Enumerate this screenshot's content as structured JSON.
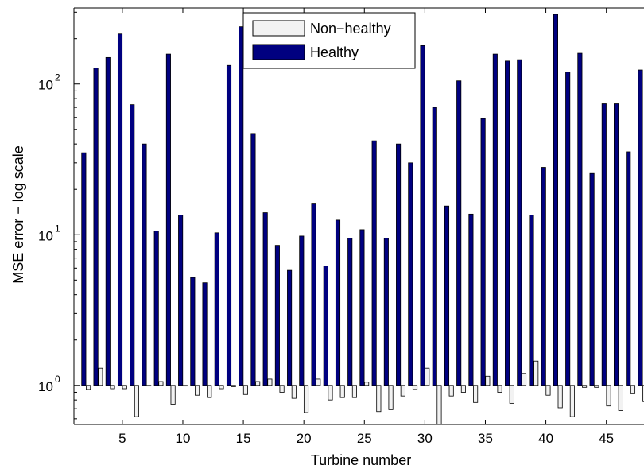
{
  "chart_data": {
    "type": "bar",
    "xlabel": "Turbine number",
    "ylabel": "MSE error − log scale",
    "yscale": "log",
    "ylim": [
      0.55,
      320
    ],
    "xlim": [
      1,
      48.1
    ],
    "grid": false,
    "legend_position": "top-center",
    "x_ticks": [
      5,
      10,
      15,
      20,
      25,
      30,
      35,
      40,
      45
    ],
    "y_ticks": [
      {
        "value": 1,
        "base": "10",
        "exp": "0"
      },
      {
        "value": 10,
        "base": "10",
        "exp": "1"
      },
      {
        "value": 100,
        "base": "10",
        "exp": "2"
      }
    ],
    "categories": [
      2,
      3,
      4,
      5,
      6,
      7,
      8,
      9,
      10,
      11,
      12,
      13,
      14,
      15,
      16,
      17,
      18,
      19,
      20,
      21,
      22,
      23,
      24,
      25,
      26,
      27,
      28,
      29,
      30,
      31,
      32,
      33,
      34,
      35,
      36,
      37,
      38,
      39,
      40,
      41,
      42,
      43,
      44,
      45,
      46,
      47,
      48
    ],
    "series": [
      {
        "name": "Non−healthy",
        "color": "#f2f2f2",
        "values": [
          0.94,
          1.3,
          0.95,
          0.95,
          0.62,
          0.99,
          1.06,
          0.75,
          0.99,
          0.86,
          0.83,
          0.95,
          0.98,
          0.87,
          1.06,
          1.1,
          0.9,
          0.82,
          0.66,
          1.1,
          0.8,
          0.83,
          0.83,
          1.05,
          0.67,
          0.69,
          0.85,
          0.94,
          1.3,
          0.5,
          0.85,
          0.9,
          0.77,
          1.15,
          0.9,
          0.76,
          1.2,
          1.45,
          0.86,
          0.71,
          0.62,
          0.97,
          0.97,
          0.73,
          0.68,
          0.88,
          0.78
        ]
      },
      {
        "name": "Healthy",
        "color": "#000080",
        "values": [
          35,
          128,
          150,
          215,
          73,
          40,
          10.6,
          158,
          13.5,
          5.2,
          4.8,
          10.3,
          133,
          240,
          47,
          14,
          8.5,
          5.8,
          9.8,
          16,
          6.2,
          12.5,
          9.5,
          10.8,
          42,
          9.5,
          40,
          30,
          180,
          70,
          15.5,
          105,
          13.7,
          59,
          158,
          142,
          145,
          13.5,
          28,
          290,
          120,
          160,
          25.5,
          74,
          74,
          35.5,
          124
        ]
      }
    ]
  }
}
